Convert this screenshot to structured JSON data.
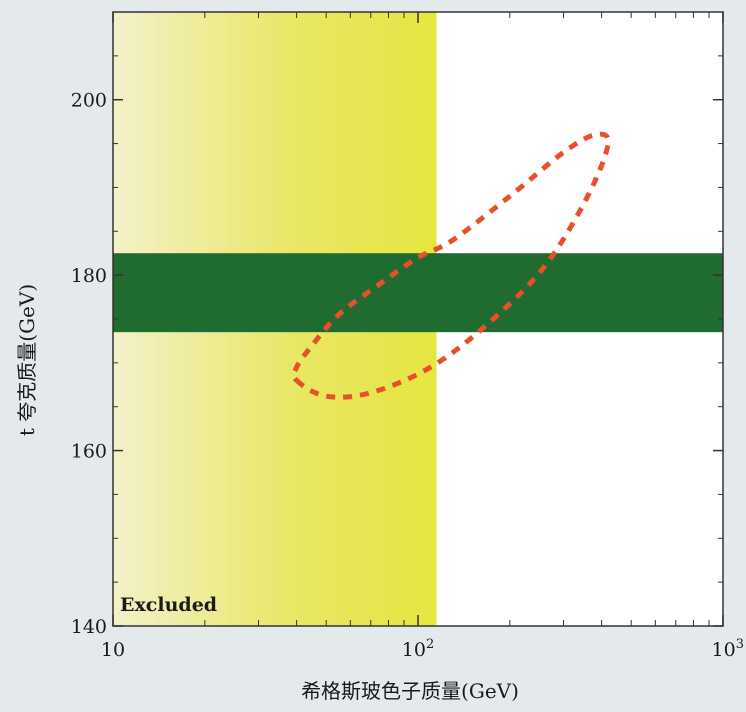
{
  "chart_data": {
    "type": "scatter",
    "xscale": "log",
    "xlim": [
      10,
      1000
    ],
    "ylim": [
      140,
      210
    ],
    "xlabel": "希格斯玻色子质量(GeV)",
    "ylabel": "t 夸克质量(GeV)",
    "xticks": [
      {
        "value": 10,
        "label": "10",
        "sup": ""
      },
      {
        "value": 100,
        "label": "10",
        "sup": "2"
      },
      {
        "value": 1000,
        "label": "10",
        "sup": "3"
      }
    ],
    "yticks": [
      140,
      160,
      180,
      200
    ],
    "excluded_region": {
      "label": "Excluded",
      "x_max": 115,
      "color": "#e6e64a"
    },
    "band": {
      "y_min": 173.5,
      "y_max": 182.5,
      "color": "#1f6b30"
    },
    "contour": {
      "style": "dashed",
      "color": "#e8502a",
      "points": [
        [
          40,
          168
        ],
        [
          50,
          166.2
        ],
        [
          70,
          166.6
        ],
        [
          110,
          169.5
        ],
        [
          170,
          174.5
        ],
        [
          260,
          181
        ],
        [
          360,
          189
        ],
        [
          420,
          195
        ],
        [
          380,
          196
        ],
        [
          300,
          194
        ],
        [
          200,
          189
        ],
        [
          130,
          184
        ],
        [
          100,
          182
        ],
        [
          75,
          179
        ],
        [
          55,
          175.5
        ],
        [
          45,
          172
        ],
        [
          40,
          169.5
        ]
      ]
    },
    "grid": false,
    "legend": "none"
  }
}
